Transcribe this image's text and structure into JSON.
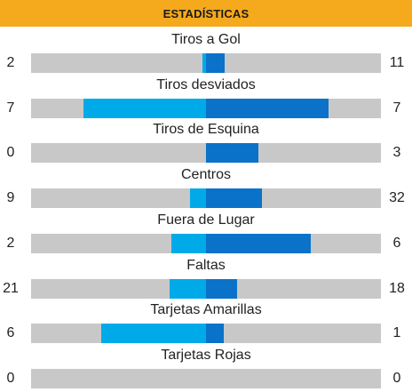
{
  "title": "ESTADÍSTICAS",
  "colors": {
    "header": "#f5a91c",
    "left_team": "#00aae8",
    "right_team": "#0a72c8",
    "track": "#c8c8c8"
  },
  "stats": [
    {
      "label": "Tiros a Gol",
      "left": "2",
      "right": "11",
      "left_ratio": 0.018,
      "right_ratio": 0.105
    },
    {
      "label": "Tiros desviados",
      "left": "7",
      "right": "7",
      "left_ratio": 0.7,
      "right_ratio": 0.7
    },
    {
      "label": "Tiros de Esquina",
      "left": "0",
      "right": "3",
      "left_ratio": 0.0,
      "right_ratio": 0.3
    },
    {
      "label": "Centros",
      "left": "9",
      "right": "32",
      "left_ratio": 0.091,
      "right_ratio": 0.32
    },
    {
      "label": "Fuera de Lugar",
      "left": "2",
      "right": "6",
      "left_ratio": 0.2,
      "right_ratio": 0.6
    },
    {
      "label": "Faltas",
      "left": "21",
      "right": "18",
      "left_ratio": 0.21,
      "right_ratio": 0.18
    },
    {
      "label": "Tarjetas Amarillas",
      "left": "6",
      "right": "1",
      "left_ratio": 0.6,
      "right_ratio": 0.1
    },
    {
      "label": "Tarjetas Rojas",
      "left": "0",
      "right": "0",
      "left_ratio": 0.0,
      "right_ratio": 0.0
    }
  ]
}
